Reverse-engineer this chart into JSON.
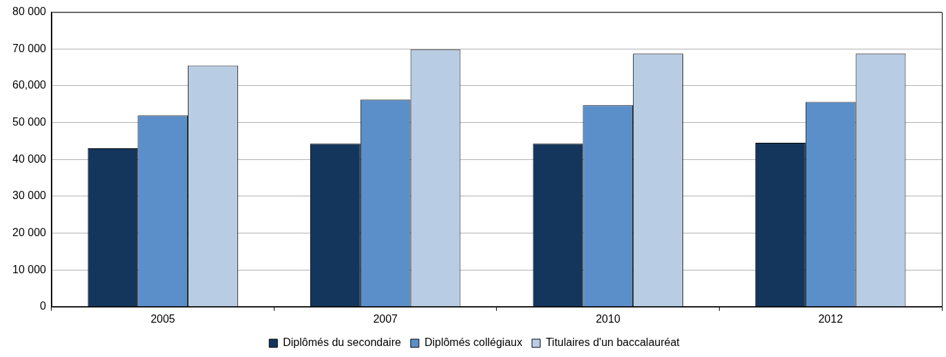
{
  "chart_data": {
    "type": "bar",
    "categories": [
      "2005",
      "2007",
      "2010",
      "2012"
    ],
    "series": [
      {
        "name": "Diplômés du secondaire",
        "color": "#14365d",
        "values": [
          43000,
          44300,
          44300,
          44500
        ]
      },
      {
        "name": "Diplômés collégiaux",
        "color": "#5b8fc9",
        "values": [
          51900,
          56200,
          54700,
          55600
        ]
      },
      {
        "name": "Titulaires d'un baccalauréat",
        "color": "#b8cce4",
        "values": [
          65500,
          69800,
          68700,
          68700
        ]
      }
    ],
    "ylim": [
      0,
      80000
    ],
    "yticks": [
      0,
      {
        "value": 10000,
        "label": "10 000"
      },
      {
        "value": 20000,
        "label": "20 000"
      },
      {
        "value": 30000,
        "label": "30 000"
      },
      {
        "value": 40000,
        "label": "40 000"
      },
      {
        "value": 50000,
        "label": "50 000"
      },
      {
        "value": 60000,
        "label": "60,000"
      },
      {
        "value": 70000,
        "label": "70 000"
      },
      {
        "value": 80000,
        "label": "80 000"
      }
    ],
    "grid": "y",
    "legend": "bottom"
  }
}
